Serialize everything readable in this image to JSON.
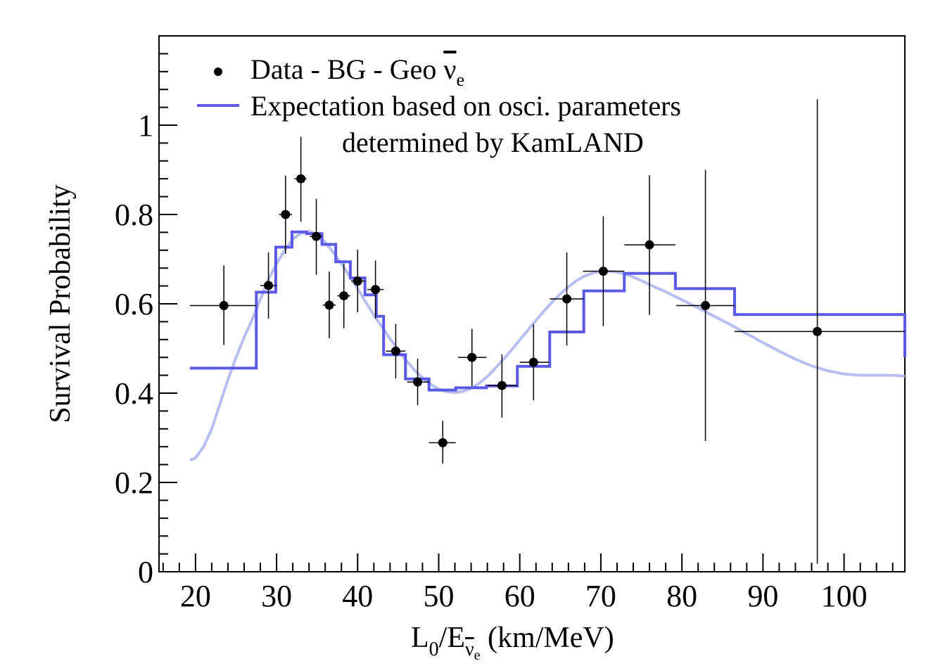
{
  "chart_data": {
    "type": "scatter",
    "xlabel_main": "L",
    "xlabel_sub0": "0",
    "xlabel_E": "/E",
    "xlabel_nu": "ν",
    "xlabel_nu_sub": "e",
    "xlabel_units": " (km/MeV)",
    "ylabel": "Survival Probability",
    "xlim": [
      15.5,
      107.5
    ],
    "ylim": [
      0,
      1.2
    ],
    "x_ticks": [
      20,
      30,
      40,
      50,
      60,
      70,
      80,
      90,
      100
    ],
    "x_tick_labels": [
      "20",
      "30",
      "40",
      "50",
      "60",
      "70",
      "80",
      "90",
      "100"
    ],
    "y_ticks": [
      0,
      0.2,
      0.4,
      0.6,
      0.8,
      1.0
    ],
    "y_tick_labels": [
      "0",
      "0.2",
      "0.4",
      "0.6",
      "0.8",
      "1"
    ],
    "legend": {
      "placement": "top-left",
      "data_label": "Data - BG - Geo ",
      "data_nu": "ν",
      "data_nu_sub": "e",
      "line_label_1": "Expectation based on osci. parameters",
      "line_label_2": "determined by KamLAND"
    },
    "colors": {
      "step": "#5a5ae6",
      "smooth": "#b9bdf2",
      "data": "#000000"
    },
    "data_points": [
      {
        "x": 23.5,
        "y": 0.596,
        "xlo": 19.3,
        "xhi": 27.5,
        "ylo": 0.508,
        "yhi": 0.686
      },
      {
        "x": 29.0,
        "y": 0.641,
        "xlo": 28.0,
        "xhi": 30.0,
        "ylo": 0.567,
        "yhi": 0.715
      },
      {
        "x": 31.1,
        "y": 0.8,
        "xlo": 30.3,
        "xhi": 31.9,
        "ylo": 0.712,
        "yhi": 0.887
      },
      {
        "x": 33.0,
        "y": 0.88,
        "xlo": 32.2,
        "xhi": 33.7,
        "ylo": 0.784,
        "yhi": 0.974
      },
      {
        "x": 34.9,
        "y": 0.751,
        "xlo": 34.1,
        "xhi": 35.6,
        "ylo": 0.665,
        "yhi": 0.835
      },
      {
        "x": 36.5,
        "y": 0.597,
        "xlo": 35.7,
        "xhi": 37.3,
        "ylo": 0.523,
        "yhi": 0.672
      },
      {
        "x": 38.3,
        "y": 0.618,
        "xlo": 37.5,
        "xhi": 39.1,
        "ylo": 0.545,
        "yhi": 0.69
      },
      {
        "x": 40.0,
        "y": 0.651,
        "xlo": 39.2,
        "xhi": 40.9,
        "ylo": 0.581,
        "yhi": 0.721
      },
      {
        "x": 42.2,
        "y": 0.632,
        "xlo": 41.2,
        "xhi": 43.2,
        "ylo": 0.567,
        "yhi": 0.697
      },
      {
        "x": 44.7,
        "y": 0.494,
        "xlo": 43.5,
        "xhi": 45.9,
        "ylo": 0.433,
        "yhi": 0.555
      },
      {
        "x": 47.4,
        "y": 0.425,
        "xlo": 46.1,
        "xhi": 48.8,
        "ylo": 0.373,
        "yhi": 0.477
      },
      {
        "x": 50.5,
        "y": 0.289,
        "xlo": 48.8,
        "xhi": 52.1,
        "ylo": 0.242,
        "yhi": 0.338
      },
      {
        "x": 54.1,
        "y": 0.48,
        "xlo": 52.4,
        "xhi": 55.9,
        "ylo": 0.416,
        "yhi": 0.544
      },
      {
        "x": 57.8,
        "y": 0.417,
        "xlo": 56.0,
        "xhi": 59.7,
        "ylo": 0.345,
        "yhi": 0.487
      },
      {
        "x": 61.7,
        "y": 0.469,
        "xlo": 60.0,
        "xhi": 63.6,
        "ylo": 0.384,
        "yhi": 0.554
      },
      {
        "x": 65.8,
        "y": 0.611,
        "xlo": 63.7,
        "xhi": 67.9,
        "ylo": 0.507,
        "yhi": 0.715
      },
      {
        "x": 70.3,
        "y": 0.673,
        "xlo": 67.8,
        "xhi": 72.9,
        "ylo": 0.55,
        "yhi": 0.796
      },
      {
        "x": 76.0,
        "y": 0.732,
        "xlo": 72.9,
        "xhi": 79.2,
        "ylo": 0.575,
        "yhi": 0.888
      },
      {
        "x": 82.9,
        "y": 0.596,
        "xlo": 79.3,
        "xhi": 86.5,
        "ylo": 0.293,
        "yhi": 0.9
      },
      {
        "x": 96.7,
        "y": 0.538,
        "xlo": 86.5,
        "xhi": 107.5,
        "ylo": 0.018,
        "yhi": 1.058
      }
    ],
    "step_edges": [
      19.3,
      27.5,
      29.9,
      31.9,
      33.7,
      35.6,
      37.3,
      39.1,
      40.9,
      42.3,
      43.2,
      45.9,
      48.8,
      52.1,
      55.9,
      59.7,
      63.7,
      67.9,
      72.9,
      79.2,
      86.5,
      107.5
    ],
    "step_values": [
      0.456,
      0.626,
      0.727,
      0.761,
      0.757,
      0.733,
      0.694,
      0.658,
      0.62,
      0.572,
      0.486,
      0.432,
      0.407,
      0.412,
      0.416,
      0.46,
      0.537,
      0.629,
      0.668,
      0.634,
      0.576,
      0.481
    ],
    "smooth_curve": [
      [
        19.3,
        0.25
      ],
      [
        20.0,
        0.255
      ],
      [
        21.0,
        0.28
      ],
      [
        22.0,
        0.32
      ],
      [
        23.0,
        0.375
      ],
      [
        24.0,
        0.43
      ],
      [
        25.0,
        0.48
      ],
      [
        26.0,
        0.525
      ],
      [
        27.0,
        0.565
      ],
      [
        28.0,
        0.61
      ],
      [
        29.0,
        0.655
      ],
      [
        30.0,
        0.69
      ],
      [
        31.0,
        0.72
      ],
      [
        32.0,
        0.745
      ],
      [
        33.0,
        0.758
      ],
      [
        34.0,
        0.762
      ],
      [
        35.0,
        0.755
      ],
      [
        36.0,
        0.738
      ],
      [
        37.0,
        0.715
      ],
      [
        38.0,
        0.69
      ],
      [
        39.0,
        0.662
      ],
      [
        40.0,
        0.634
      ],
      [
        41.0,
        0.604
      ],
      [
        42.0,
        0.575
      ],
      [
        43.0,
        0.548
      ],
      [
        44.0,
        0.522
      ],
      [
        45.0,
        0.497
      ],
      [
        46.0,
        0.473
      ],
      [
        47.0,
        0.452
      ],
      [
        48.0,
        0.434
      ],
      [
        49.0,
        0.42
      ],
      [
        50.0,
        0.409
      ],
      [
        51.0,
        0.403
      ],
      [
        52.0,
        0.401
      ],
      [
        53.0,
        0.404
      ],
      [
        54.0,
        0.411
      ],
      [
        55.0,
        0.422
      ],
      [
        56.0,
        0.437
      ],
      [
        57.0,
        0.456
      ],
      [
        58.0,
        0.476
      ],
      [
        59.0,
        0.497
      ],
      [
        60.0,
        0.519
      ],
      [
        61.0,
        0.541
      ],
      [
        62.0,
        0.563
      ],
      [
        63.0,
        0.584
      ],
      [
        64.0,
        0.604
      ],
      [
        65.0,
        0.622
      ],
      [
        66.0,
        0.638
      ],
      [
        67.0,
        0.652
      ],
      [
        68.0,
        0.662
      ],
      [
        69.0,
        0.669
      ],
      [
        70.0,
        0.673
      ],
      [
        71.0,
        0.673
      ],
      [
        72.0,
        0.671
      ],
      [
        73.0,
        0.667
      ],
      [
        74.0,
        0.66
      ],
      [
        75.0,
        0.652
      ],
      [
        76.0,
        0.643
      ],
      [
        78.0,
        0.627
      ],
      [
        80.0,
        0.609
      ],
      [
        82.0,
        0.591
      ],
      [
        84.0,
        0.572
      ],
      [
        86.0,
        0.553
      ],
      [
        88.0,
        0.533
      ],
      [
        90.0,
        0.513
      ],
      [
        92.0,
        0.494
      ],
      [
        94.0,
        0.476
      ],
      [
        96.0,
        0.461
      ],
      [
        98.0,
        0.45
      ],
      [
        100.0,
        0.443
      ],
      [
        102.0,
        0.44
      ],
      [
        104.0,
        0.44
      ],
      [
        106.0,
        0.44
      ],
      [
        107.5,
        0.438
      ]
    ]
  }
}
